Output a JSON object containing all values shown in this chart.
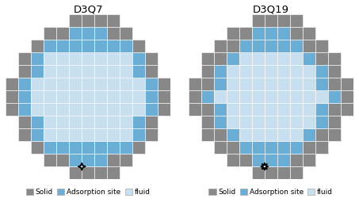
{
  "title1": "D3Q7",
  "title2": "D3Q19",
  "color_solid": "#888888",
  "color_adsorption": "#6aaed6",
  "color_fluid": "#c8dff0",
  "color_bg": "#ffffff",
  "legend1": [
    "Solid",
    "Adsorption site",
    "fluid"
  ],
  "legend2": [
    "Solid",
    "Adsorption site",
    "fluid"
  ],
  "title_fontsize": 9.5,
  "legend_fontsize": 6.5,
  "d3q7_grid": [
    [
      0,
      0,
      0,
      0,
      0,
      1,
      1,
      1,
      1,
      0,
      0,
      0,
      0
    ],
    [
      0,
      0,
      0,
      1,
      1,
      2,
      2,
      2,
      1,
      1,
      0,
      0,
      0
    ],
    [
      0,
      0,
      1,
      2,
      2,
      2,
      2,
      2,
      2,
      2,
      1,
      0,
      0
    ],
    [
      0,
      1,
      2,
      3,
      3,
      3,
      3,
      3,
      3,
      3,
      2,
      1,
      0
    ],
    [
      0,
      1,
      2,
      3,
      3,
      3,
      3,
      3,
      3,
      3,
      2,
      1,
      0
    ],
    [
      1,
      2,
      3,
      3,
      3,
      3,
      3,
      3,
      3,
      3,
      3,
      2,
      1
    ],
    [
      1,
      2,
      3,
      3,
      3,
      3,
      3,
      3,
      3,
      3,
      3,
      2,
      1
    ],
    [
      1,
      2,
      3,
      3,
      3,
      3,
      3,
      3,
      3,
      3,
      3,
      2,
      1
    ],
    [
      0,
      1,
      2,
      3,
      3,
      3,
      3,
      3,
      3,
      3,
      2,
      1,
      0
    ],
    [
      0,
      1,
      2,
      3,
      3,
      3,
      3,
      3,
      3,
      3,
      2,
      1,
      0
    ],
    [
      0,
      0,
      1,
      2,
      2,
      2,
      2,
      2,
      2,
      2,
      1,
      0,
      0
    ],
    [
      0,
      0,
      0,
      1,
      1,
      2,
      2,
      2,
      1,
      1,
      0,
      0,
      0
    ],
    [
      0,
      0,
      0,
      0,
      0,
      1,
      1,
      1,
      1,
      0,
      0,
      0,
      0
    ]
  ],
  "d3q19_grid": [
    [
      0,
      0,
      0,
      0,
      0,
      1,
      1,
      1,
      1,
      0,
      0,
      0,
      0
    ],
    [
      0,
      0,
      0,
      1,
      1,
      2,
      2,
      2,
      1,
      1,
      0,
      0,
      0
    ],
    [
      0,
      0,
      1,
      1,
      2,
      2,
      2,
      2,
      2,
      1,
      1,
      0,
      0
    ],
    [
      0,
      1,
      1,
      2,
      3,
      3,
      3,
      3,
      3,
      2,
      1,
      1,
      0
    ],
    [
      0,
      1,
      2,
      3,
      3,
      3,
      3,
      3,
      3,
      3,
      2,
      1,
      0
    ],
    [
      1,
      1,
      2,
      3,
      3,
      3,
      3,
      3,
      3,
      3,
      2,
      1,
      1
    ],
    [
      1,
      2,
      3,
      3,
      3,
      3,
      3,
      3,
      3,
      3,
      3,
      2,
      1
    ],
    [
      1,
      1,
      2,
      3,
      3,
      3,
      3,
      3,
      3,
      3,
      2,
      1,
      1
    ],
    [
      0,
      1,
      2,
      3,
      3,
      3,
      3,
      3,
      3,
      3,
      2,
      1,
      0
    ],
    [
      0,
      1,
      1,
      2,
      3,
      3,
      3,
      3,
      3,
      2,
      1,
      1,
      0
    ],
    [
      0,
      0,
      1,
      1,
      2,
      2,
      2,
      2,
      2,
      1,
      1,
      0,
      0
    ],
    [
      0,
      0,
      0,
      1,
      1,
      2,
      2,
      2,
      1,
      1,
      0,
      0,
      0
    ],
    [
      0,
      0,
      0,
      0,
      0,
      1,
      1,
      1,
      1,
      0,
      0,
      0,
      0
    ]
  ]
}
